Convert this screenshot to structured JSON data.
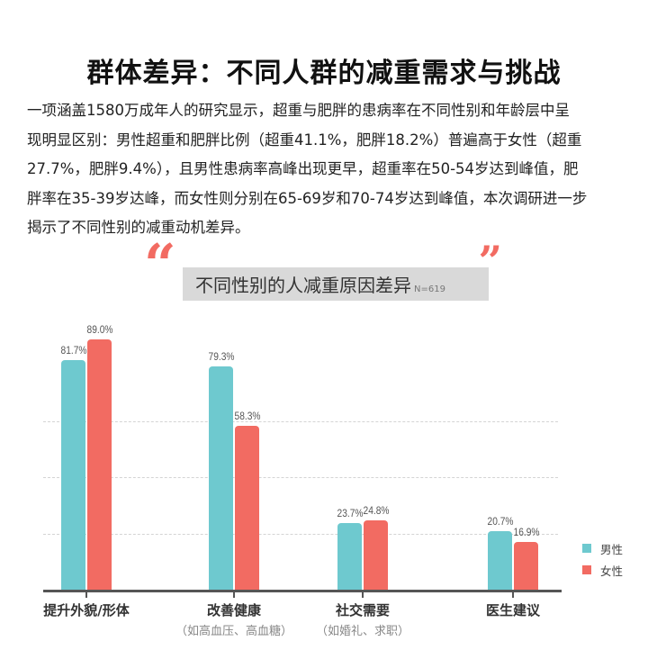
{
  "page": {
    "title": "群体差异：不同人群的减重需求与挑战",
    "intro_lines": [
      "一项涵盖1580万成年人的研究显示，超重与肥胖的患病率在不同性别和年龄层中呈",
      "现明显区别：男性超重和肥胖比例（超重41.1%，肥胖18.2%）普遍高于女性（超重",
      "27.7%，肥胖9.4%），且男性患病率高峰出现更早，超重率在50-54岁达到峰值，肥",
      "胖率在35-39岁达峰，而女性则分别在65-69岁和70-74岁达到峰值，本次调研进一步",
      "揭示了不同性别的减重动机差异。"
    ]
  },
  "chart_header": {
    "open_quote": "“",
    "close_quote": "”",
    "title": "不同性别的人减重原因差异",
    "sample_size": "N=619"
  },
  "colors": {
    "male": "#6ec9cf",
    "female": "#f26b62",
    "quote": "#f26b62",
    "band": "#d9d9d9"
  },
  "legend": [
    {
      "label": "男性",
      "color": "#6ec9cf"
    },
    {
      "label": "女性",
      "color": "#f26b62"
    }
  ],
  "chart_data": {
    "type": "bar",
    "title": "不同性别的人减重原因差异",
    "subtitle": "N=619",
    "categories": [
      "提升外貌/形体",
      "改善健康",
      "社交需要",
      "医生建议"
    ],
    "category_notes": [
      "",
      "（如高血压、高血糖）",
      "（如婚礼、求职）",
      ""
    ],
    "series": [
      {
        "name": "男性",
        "values": [
          81.7,
          79.3,
          23.7,
          20.7
        ],
        "labels": [
          "81.7%",
          "79.3%",
          "23.7%",
          "20.7%"
        ]
      },
      {
        "name": "女性",
        "values": [
          89.0,
          58.3,
          24.8,
          16.9
        ],
        "labels": [
          "89.0%",
          "58.3%",
          "24.8%",
          "16.9%"
        ]
      }
    ],
    "xlabel": "",
    "ylabel": "",
    "ylim": [
      0,
      100
    ],
    "grid": true,
    "gridlines_at": [
      20,
      40,
      60
    ],
    "legend_position": "right"
  }
}
